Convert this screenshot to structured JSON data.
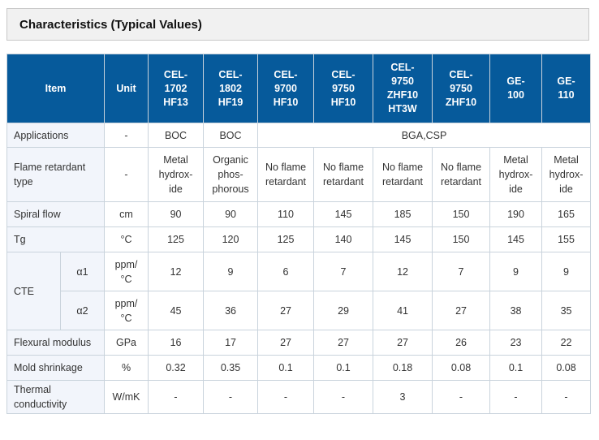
{
  "title": "Characteristics (Typical Values)",
  "header": {
    "item": "Item",
    "unit": "Unit",
    "products": [
      [
        "CEL-",
        "1702",
        "HF13"
      ],
      [
        "CEL-",
        "1802",
        "HF19"
      ],
      [
        "CEL-",
        "9700",
        "HF10"
      ],
      [
        "CEL-",
        "9750",
        "HF10"
      ],
      [
        "CEL-",
        "9750",
        "ZHF10",
        "HT3W"
      ],
      [
        "CEL-",
        "9750",
        "ZHF10"
      ],
      [
        "GE-",
        "100"
      ],
      [
        "GE-",
        "110"
      ]
    ]
  },
  "rows": {
    "applications": {
      "label": "Applications",
      "unit": "-",
      "values": [
        "BOC",
        "BOC"
      ],
      "merged": "BGA,CSP"
    },
    "flame": {
      "label": [
        "Flame retardant",
        "type"
      ],
      "unit": "-",
      "values": [
        [
          "Metal",
          "hydrox-",
          "ide"
        ],
        [
          "Organic",
          "phos-",
          "phorous"
        ],
        [
          "No flame",
          "retardant"
        ],
        [
          "No flame",
          "retardant"
        ],
        [
          "No flame",
          "retardant"
        ],
        [
          "No flame",
          "retardant"
        ],
        [
          "Metal",
          "hydrox-",
          "ide"
        ],
        [
          "Metal",
          "hydrox-",
          "ide"
        ]
      ]
    },
    "spiral": {
      "label": "Spiral flow",
      "unit": "cm",
      "values": [
        "90",
        "90",
        "110",
        "145",
        "185",
        "150",
        "190",
        "165"
      ]
    },
    "tg": {
      "label": "Tg",
      "unit": "°C",
      "values": [
        "125",
        "120",
        "125",
        "140",
        "145",
        "150",
        "145",
        "155"
      ]
    },
    "cte": {
      "label": "CTE",
      "a1": {
        "sub": "α1",
        "unit": [
          "ppm/",
          "°C"
        ],
        "values": [
          "12",
          "9",
          "6",
          "7",
          "12",
          "7",
          "9",
          "9"
        ]
      },
      "a2": {
        "sub": "α2",
        "unit": [
          "ppm/",
          "°C"
        ],
        "values": [
          "45",
          "36",
          "27",
          "29",
          "41",
          "27",
          "38",
          "35"
        ]
      }
    },
    "flexural": {
      "label": "Flexural modulus",
      "unit": "GPa",
      "values": [
        "16",
        "17",
        "27",
        "27",
        "27",
        "26",
        "23",
        "22"
      ]
    },
    "shrinkage": {
      "label": "Mold shrinkage",
      "unit": "%",
      "values": [
        "0.32",
        "0.35",
        "0.1",
        "0.1",
        "0.18",
        "0.08",
        "0.1",
        "0.08"
      ]
    },
    "thermal": {
      "label": [
        "Thermal",
        "conductivity"
      ],
      "unit": "W/mK",
      "values": [
        "-",
        "-",
        "-",
        "-",
        "3",
        "-",
        "-",
        "-"
      ]
    }
  }
}
